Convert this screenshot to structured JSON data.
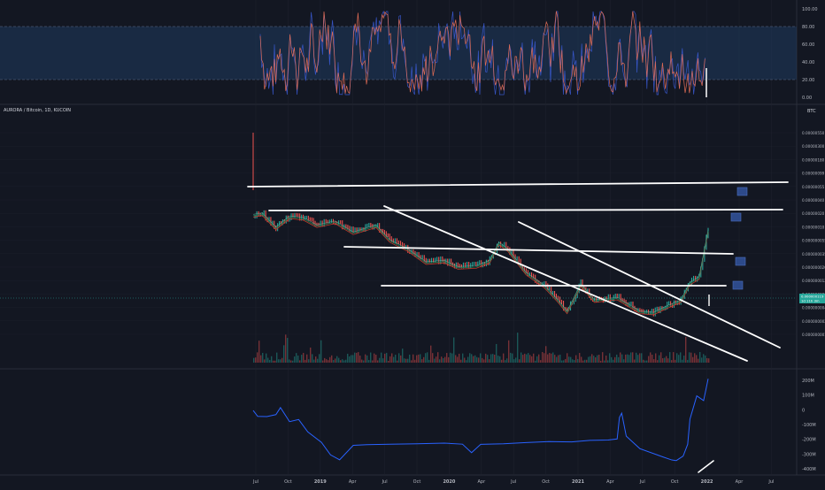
{
  "colors": {
    "background": "#131722",
    "panel_border": "#2a2e39",
    "grid": "#1e222d",
    "stoch_k": "#e06c55",
    "stoch_d": "#3b5bd6",
    "stoch_band": "#1f3a5f",
    "obv": "#2962ff",
    "candle_up": "#26a69a",
    "candle_down": "#ef5350",
    "ma_red": "#c0392b",
    "ma_green": "#1b7a52",
    "trendline": "#ffffff",
    "price_tag": "#26a69a",
    "label_box": "#2d4a8a"
  },
  "chart_data": {
    "type": "line",
    "symbol_title": "AURORA / Bitcoin, 1D, KUCOIN",
    "currency_label": "BTC",
    "x_ticks": [
      "Jul",
      "Oct",
      "2019",
      "Apr",
      "Jul",
      "Oct",
      "2020",
      "Apr",
      "Jul",
      "Oct",
      "2021",
      "Apr",
      "Jul",
      "Oct",
      "2022",
      "Apr",
      "Jul"
    ],
    "panels": [
      {
        "name": "oscillator",
        "y_ticks": [
          "100.00",
          "80.00",
          "60.00",
          "40.00",
          "20.00",
          "0.00"
        ],
        "band": [
          20,
          80
        ],
        "ylim": [
          0,
          100
        ]
      },
      {
        "name": "price",
        "y_ticks": [
          "0.00000550",
          "0.00000300",
          "0.00000180",
          "0.00000099",
          "0.00000055",
          "0.00000040",
          "0.00000020",
          "0.00000010",
          "0.000000055",
          "0.000000035",
          "0.000000020",
          "0.000000012",
          "0.0000000070",
          "0.0000000040",
          "0.0000000021",
          "0.0000000013"
        ],
        "price_tag_lines": [
          "0.000000119",
          "1d 11h 3m"
        ],
        "series": [
          {
            "name": "price",
            "x": [
              0,
              0.02,
              0.05,
              0.08,
              0.11,
              0.14,
              0.18,
              0.22,
              0.27,
              0.3,
              0.34,
              0.38,
              0.42,
              0.45,
              0.49,
              0.52,
              0.54,
              0.56,
              0.6,
              0.64,
              0.67,
              0.69,
              0.72,
              0.75,
              0.8,
              0.85,
              0.88,
              0.91,
              0.94,
              0.96,
              0.98,
              1.0
            ],
            "y": [
              2e-07,
              2.1e-07,
              1.3e-07,
              1.9e-07,
              1.8e-07,
              1.4e-07,
              1.6e-07,
              1.1e-07,
              1.4e-07,
              8.5e-08,
              6.2e-08,
              4e-08,
              4.2e-08,
              3.4e-08,
              3.5e-08,
              4.2e-08,
              7.8e-08,
              6.2e-08,
              2.8e-08,
              1.8e-08,
              1.1e-08,
              7.5e-09,
              1.9e-08,
              1.1e-08,
              1.2e-08,
              7.5e-09,
              7.2e-09,
              9e-09,
              1.1e-08,
              2e-08,
              2.4e-08,
              1.19e-07
            ]
          }
        ]
      },
      {
        "name": "obv",
        "y_ticks": [
          "200M",
          "100M",
          "0",
          "-100M",
          "-200M",
          "-300M",
          "-400M"
        ],
        "ylim": [
          -430,
          230
        ],
        "series": [
          {
            "name": "obv",
            "x": [
              0,
              0.01,
              0.03,
              0.05,
              0.06,
              0.08,
              0.1,
              0.12,
              0.15,
              0.17,
              0.19,
              0.22,
              0.25,
              0.3,
              0.36,
              0.42,
              0.46,
              0.48,
              0.5,
              0.55,
              0.6,
              0.65,
              0.68,
              0.7,
              0.74,
              0.78,
              0.8,
              0.805,
              0.81,
              0.82,
              0.85,
              0.9,
              0.92,
              0.93,
              0.945,
              0.955,
              0.96,
              0.975,
              0.99,
              1.0
            ],
            "y": [
              0,
              -40,
              -50,
              -30,
              10,
              -80,
              -60,
              -150,
              -220,
              -300,
              -340,
              -240,
              -240,
              -235,
              -235,
              -232,
              -230,
              -290,
              -230,
              -225,
              -225,
              -220,
              -218,
              -215,
              -210,
              -205,
              -200,
              -50,
              -20,
              -180,
              -260,
              -320,
              -340,
              -350,
              -320,
              -240,
              -60,
              100,
              60,
              210
            ]
          }
        ]
      }
    ],
    "trendlines": [
      {
        "from": [
          0.0,
          2.08e-07
        ],
        "to": [
          1.0,
          2.2e-07
        ]
      },
      {
        "from": [
          0.03,
          1.25e-07
        ],
        "to": [
          0.97,
          1.25e-07
        ]
      },
      {
        "from": [
          0.19,
          6.6e-08
        ],
        "to": [
          0.9,
          5.8e-08
        ]
      },
      {
        "from": [
          0.25,
          2.8e-08
        ],
        "to": [
          0.91,
          2.8e-08
        ]
      },
      {
        "from": [
          0.25,
          1.25e-07
        ],
        "to": [
          1.0,
          1.9e-09
        ]
      },
      {
        "from": [
          0.52,
          7.8e-08
        ],
        "to": [
          1.0,
          2.4e-09
        ]
      }
    ]
  }
}
